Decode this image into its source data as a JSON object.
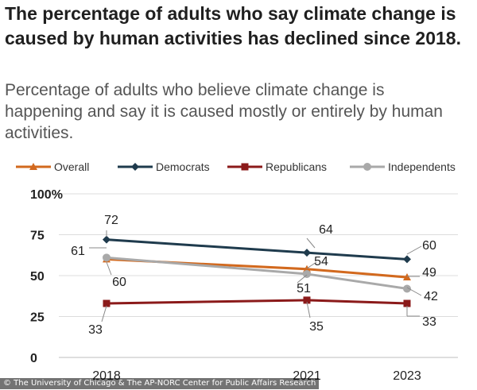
{
  "title": "The percentage of adults who say climate change is caused by human activities has declined since 2018.",
  "subtitle": "Percentage of adults who believe climate change is happening and say it is caused mostly or entirely by human activities.",
  "credit": "© The University of Chicago & The AP-NORC Center for Public Affairs Research",
  "chart_data": {
    "type": "line",
    "title": "The percentage of adults who say climate change is caused by human activities has declined since 2018.",
    "subtitle": "Percentage of adults who believe climate change is happening and say it is caused mostly or entirely by human activities.",
    "x": [
      2018,
      2021,
      2023
    ],
    "x_tick_labels": [
      "2018",
      "2021",
      "2023"
    ],
    "y_tick_labels": [
      "100%",
      "75",
      "50",
      "25",
      "0"
    ],
    "y_ticks": [
      100,
      75,
      50,
      25,
      0
    ],
    "ylim": [
      0,
      100
    ],
    "grid": true,
    "legend_position": "top",
    "series": [
      {
        "name": "Overall",
        "values": [
          60,
          54,
          49
        ],
        "labels": [
          "60",
          "54",
          "49"
        ],
        "color": "#d2691e",
        "marker": "triangle"
      },
      {
        "name": "Democrats",
        "values": [
          72,
          64,
          60
        ],
        "labels": [
          "72",
          "64",
          "60"
        ],
        "color": "#1f3b4d",
        "marker": "diamond"
      },
      {
        "name": "Republicans",
        "values": [
          33,
          35,
          33
        ],
        "labels": [
          "33",
          "35",
          "33"
        ],
        "color": "#8b1a1a",
        "marker": "square"
      },
      {
        "name": "Independents",
        "values": [
          61,
          51,
          42
        ],
        "labels": [
          "61",
          "51",
          "42"
        ],
        "color": "#a9a9a9",
        "marker": "circle"
      }
    ]
  }
}
